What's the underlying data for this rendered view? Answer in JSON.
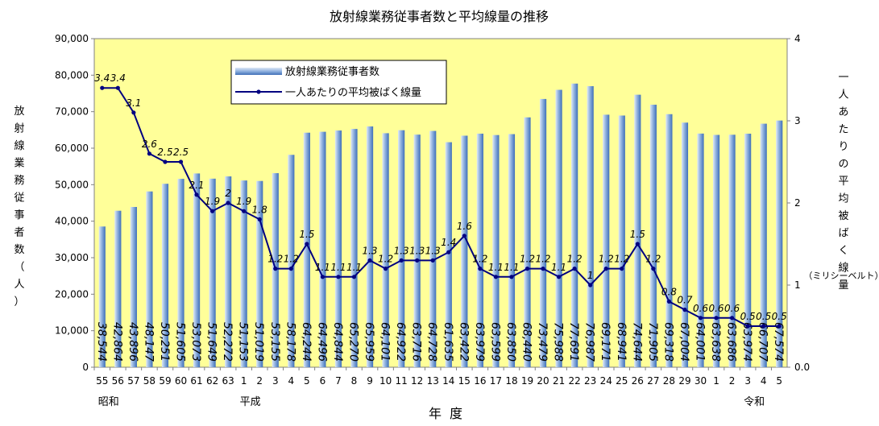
{
  "chart_data": {
    "type": "bar+line",
    "title": "放射線業務従事者数と平均線量の推移",
    "xlabel": "年度",
    "ylabel_left": "放射線業務従事者数（人）",
    "ylabel_right": "一人あたりの平均被ばく線量",
    "ylabel_right_unit": "（ミリシーベルト）",
    "ylim_left": [
      0,
      90000
    ],
    "ylim_right": [
      0,
      4
    ],
    "left_ticks": [
      "0",
      "10,000",
      "20,000",
      "30,000",
      "40,000",
      "50,000",
      "60,000",
      "70,000",
      "80,000",
      "90,000"
    ],
    "right_ticks": [
      "0.0",
      "1",
      "2",
      "3",
      "4"
    ],
    "categories": [
      "55",
      "56",
      "57",
      "58",
      "59",
      "60",
      "61",
      "62",
      "63",
      "1",
      "2",
      "3",
      "4",
      "5",
      "6",
      "7",
      "8",
      "9",
      "10",
      "11",
      "12",
      "13",
      "14",
      "15",
      "16",
      "17",
      "18",
      "19",
      "20",
      "21",
      "22",
      "23",
      "24",
      "25",
      "26",
      "27",
      "28",
      "29",
      "30",
      "1",
      "2",
      "3",
      "4",
      "5"
    ],
    "era_labels": [
      {
        "text": "昭和",
        "index": 0
      },
      {
        "text": "平成",
        "index": 9
      },
      {
        "text": "令和",
        "index": 41
      }
    ],
    "legend": [
      "放射線業務従事者数",
      "一人あたりの平均被ばく線量"
    ],
    "series": [
      {
        "name": "放射線業務従事者数",
        "type": "bar",
        "values": [
          38544,
          42864,
          43896,
          48147,
          50251,
          51605,
          53073,
          51649,
          52272,
          51153,
          51019,
          53155,
          58178,
          64244,
          64496,
          64844,
          65270,
          65959,
          64101,
          64922,
          63716,
          64728,
          61635,
          63422,
          63979,
          63599,
          63850,
          68440,
          73479,
          75988,
          77691,
          76987,
          69171,
          68941,
          74644,
          71905,
          69318,
          67004,
          64001,
          63638,
          63686,
          63974,
          66707,
          67574
        ],
        "labels": [
          "38,544",
          "42,864",
          "43,896",
          "48,147",
          "50,251",
          "51,605",
          "53,073",
          "51,649",
          "52,272",
          "51,153",
          "51,019",
          "53,155",
          "58,178",
          "64,244",
          "64,496",
          "64,844",
          "65,270",
          "65,959",
          "64,101",
          "64,922",
          "63,716",
          "64,728",
          "61,635",
          "63,422",
          "63,979",
          "63,599",
          "63,850",
          "68,440",
          "73,479",
          "75,988",
          "77,691",
          "76,987",
          "69,171",
          "68,941",
          "74,644",
          "71,905",
          "69,318",
          "67,004",
          "64,001",
          "63,638",
          "63,686",
          "63,974",
          "66,707",
          "67,574"
        ]
      },
      {
        "name": "一人あたりの平均被ばく線量",
        "type": "line",
        "values": [
          3.4,
          3.4,
          3.1,
          2.6,
          2.5,
          2.5,
          2.1,
          1.9,
          2,
          1.9,
          1.8,
          1.2,
          1.2,
          1.5,
          1.1,
          1.1,
          1.1,
          1.3,
          1.2,
          1.3,
          1.3,
          1.3,
          1.4,
          1.6,
          1.2,
          1.1,
          1.1,
          1.2,
          1.2,
          1.1,
          1.2,
          1,
          1.2,
          1.2,
          1.5,
          1.2,
          0.8,
          0.7,
          0.6,
          0.6,
          0.6,
          0.5,
          0.5,
          0.5
        ],
        "labels": [
          "3.4",
          "3.4",
          "3.1",
          "2.6",
          "2.5",
          "2.5",
          "2.1",
          "1.9",
          "2",
          "1.9",
          "1.8",
          "1.2",
          "1.2",
          "1.5",
          "1.1",
          "1.1",
          "1.1",
          "1.3",
          "1.2",
          "1.3",
          "1.3",
          "1.3",
          "1.4",
          "1.6",
          "1.2",
          "1.1",
          "1.1",
          "1.2",
          "1.2",
          "1.1",
          "1.2",
          "1",
          "1.2",
          "1.2",
          "1.5",
          "1.2",
          "0.8",
          "0.7",
          "0.6",
          "0.6",
          "0.6",
          "0.5",
          "0.5",
          "0.5"
        ]
      }
    ],
    "colors": {
      "plot_background": "#ffff99",
      "bar_light": "#dfe9f7",
      "bar_mid": "#8fb1de",
      "bar_dark": "#3f6fb8",
      "line": "#000080"
    },
    "grid": false,
    "legend_position": "top-left-inside"
  }
}
